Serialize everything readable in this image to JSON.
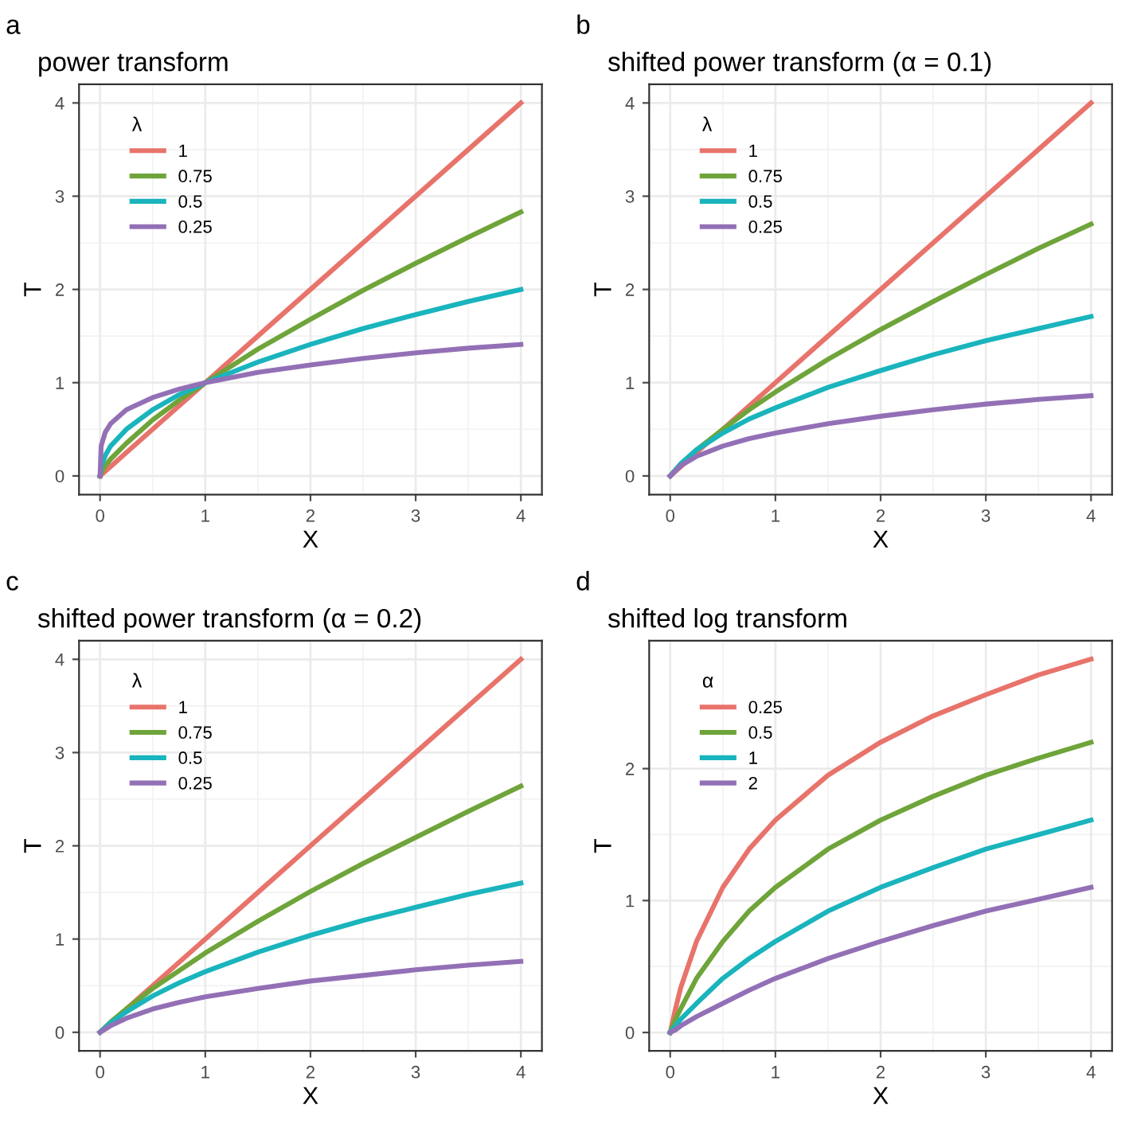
{
  "chart_data": [
    {
      "type": "line",
      "title": "power transform",
      "annotations": [
        "a"
      ],
      "xlabel": "X",
      "ylabel": "T",
      "legend_title": "λ",
      "legend": "top left",
      "grid": true,
      "x": [
        0,
        0.01,
        0.05,
        0.1,
        0.25,
        0.5,
        0.75,
        1,
        1.5,
        2,
        2.5,
        3,
        3.5,
        4
      ],
      "xlim": [
        -0.2,
        4.2
      ],
      "ylim": [
        -0.2,
        4.2
      ],
      "xticks": [
        0,
        1,
        2,
        3,
        4
      ],
      "yticks": [
        0,
        1,
        2,
        3,
        4
      ],
      "series": [
        {
          "name": "1",
          "color": "#e8736b",
          "values": [
            0,
            0.01,
            0.05,
            0.1,
            0.25,
            0.5,
            0.75,
            1,
            1.5,
            2,
            2.5,
            3,
            3.5,
            4
          ]
        },
        {
          "name": "0.75",
          "color": "#6fa43a",
          "values": [
            0,
            0.03,
            0.11,
            0.18,
            0.35,
            0.6,
            0.81,
            1,
            1.36,
            1.68,
            1.99,
            2.28,
            2.56,
            2.83
          ]
        },
        {
          "name": "0.5",
          "color": "#1ab4bd",
          "values": [
            0,
            0.1,
            0.22,
            0.32,
            0.5,
            0.71,
            0.87,
            1,
            1.22,
            1.41,
            1.58,
            1.73,
            1.87,
            2
          ]
        },
        {
          "name": "0.25",
          "color": "#9370b6",
          "values": [
            0,
            0.32,
            0.47,
            0.56,
            0.71,
            0.84,
            0.93,
            1,
            1.11,
            1.19,
            1.26,
            1.32,
            1.37,
            1.41
          ]
        }
      ]
    },
    {
      "type": "line",
      "title": "shifted power transform (α = 0.1)",
      "annotations": [
        "b"
      ],
      "xlabel": "X",
      "ylabel": "T",
      "legend_title": "λ",
      "legend": "top left",
      "grid": true,
      "x": [
        0,
        0.1,
        0.25,
        0.5,
        0.75,
        1,
        1.5,
        2,
        2.5,
        3,
        3.5,
        4
      ],
      "xlim": [
        -0.2,
        4.2
      ],
      "ylim": [
        -0.2,
        4.2
      ],
      "xticks": [
        0,
        1,
        2,
        3,
        4
      ],
      "yticks": [
        0,
        1,
        2,
        3,
        4
      ],
      "series": [
        {
          "name": "1",
          "color": "#e8736b",
          "values": [
            0,
            0.1,
            0.25,
            0.5,
            0.75,
            1,
            1.5,
            2,
            2.5,
            3,
            3.5,
            4
          ]
        },
        {
          "name": "0.75",
          "color": "#6fa43a",
          "values": [
            0,
            0.12,
            0.28,
            0.5,
            0.71,
            0.9,
            1.25,
            1.57,
            1.87,
            2.16,
            2.44,
            2.7
          ]
        },
        {
          "name": "0.5",
          "color": "#1ab4bd",
          "values": [
            0,
            0.13,
            0.28,
            0.46,
            0.61,
            0.73,
            0.95,
            1.13,
            1.3,
            1.45,
            1.58,
            1.71
          ]
        },
        {
          "name": "0.25",
          "color": "#9370b6",
          "values": [
            0,
            0.11,
            0.21,
            0.32,
            0.4,
            0.46,
            0.56,
            0.64,
            0.71,
            0.77,
            0.82,
            0.86
          ]
        }
      ]
    },
    {
      "type": "line",
      "title": "shifted power transform (α = 0.2)",
      "annotations": [
        "c"
      ],
      "xlabel": "X",
      "ylabel": "T",
      "legend_title": "λ",
      "legend": "top left",
      "grid": true,
      "x": [
        0,
        0.1,
        0.25,
        0.5,
        0.75,
        1,
        1.5,
        2,
        2.5,
        3,
        3.5,
        4
      ],
      "xlim": [
        -0.2,
        4.2
      ],
      "ylim": [
        -0.2,
        4.2
      ],
      "xticks": [
        0,
        1,
        2,
        3,
        4
      ],
      "yticks": [
        0,
        1,
        2,
        3,
        4
      ],
      "series": [
        {
          "name": "1",
          "color": "#e8736b",
          "values": [
            0,
            0.1,
            0.25,
            0.5,
            0.75,
            1,
            1.5,
            2,
            2.5,
            3,
            3.5,
            4
          ]
        },
        {
          "name": "0.75",
          "color": "#6fa43a",
          "values": [
            0,
            0.11,
            0.25,
            0.47,
            0.66,
            0.85,
            1.19,
            1.51,
            1.81,
            2.09,
            2.37,
            2.64
          ]
        },
        {
          "name": "0.5",
          "color": "#1ab4bd",
          "values": [
            0,
            0.1,
            0.22,
            0.39,
            0.53,
            0.65,
            0.86,
            1.04,
            1.2,
            1.34,
            1.48,
            1.6
          ]
        },
        {
          "name": "0.25",
          "color": "#9370b6",
          "values": [
            0,
            0.07,
            0.15,
            0.25,
            0.32,
            0.38,
            0.47,
            0.55,
            0.61,
            0.67,
            0.72,
            0.76
          ]
        }
      ]
    },
    {
      "type": "line",
      "title": "shifted log transform",
      "annotations": [
        "d"
      ],
      "xlabel": "X",
      "ylabel": "T",
      "legend_title": "α",
      "legend": "top left",
      "grid": true,
      "x": [
        0,
        0.05,
        0.1,
        0.25,
        0.5,
        0.75,
        1,
        1.5,
        2,
        2.5,
        3,
        3.5,
        4
      ],
      "xlim": [
        -0.2,
        4.2
      ],
      "ylim": [
        -0.14,
        2.97
      ],
      "xticks": [
        0,
        1,
        2,
        3,
        4
      ],
      "yticks": [
        0,
        1,
        2
      ],
      "series": [
        {
          "name": "0.25",
          "color": "#e8736b",
          "values": [
            0,
            0.18,
            0.34,
            0.69,
            1.1,
            1.39,
            1.61,
            1.95,
            2.2,
            2.4,
            2.56,
            2.71,
            2.83
          ]
        },
        {
          "name": "0.5",
          "color": "#6fa43a",
          "values": [
            0,
            0.1,
            0.18,
            0.41,
            0.69,
            0.92,
            1.1,
            1.39,
            1.61,
            1.79,
            1.95,
            2.08,
            2.2
          ]
        },
        {
          "name": "1",
          "color": "#1ab4bd",
          "values": [
            0,
            0.05,
            0.1,
            0.22,
            0.41,
            0.56,
            0.69,
            0.92,
            1.1,
            1.25,
            1.39,
            1.5,
            1.61
          ]
        },
        {
          "name": "2",
          "color": "#9370b6",
          "values": [
            0,
            0.02,
            0.05,
            0.12,
            0.22,
            0.32,
            0.41,
            0.56,
            0.69,
            0.81,
            0.92,
            1.01,
            1.1
          ]
        }
      ]
    }
  ]
}
